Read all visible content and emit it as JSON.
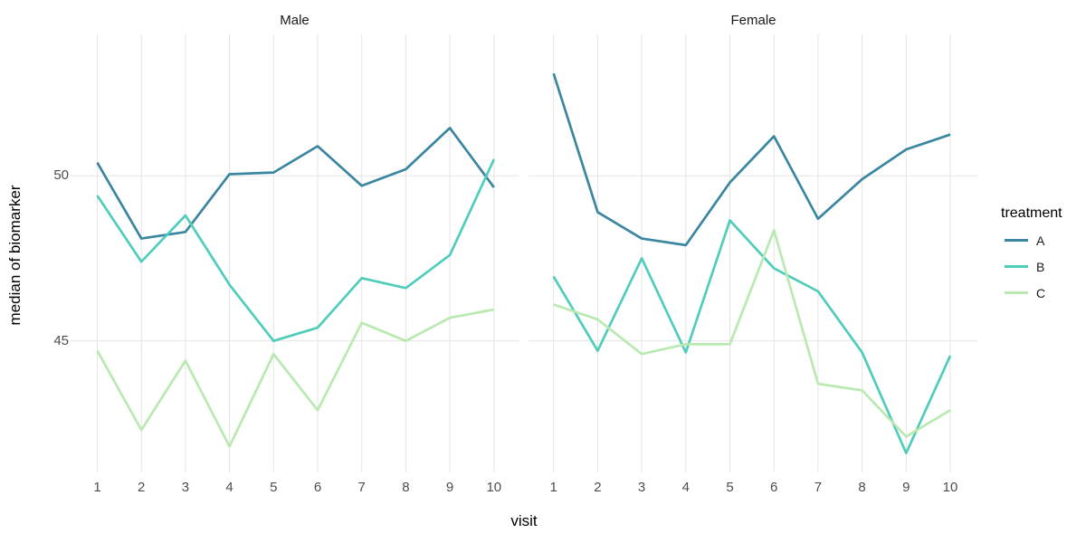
{
  "legend": {
    "title": "treatment",
    "items": [
      {
        "label": "A",
        "color": "#3a86a0"
      },
      {
        "label": "B",
        "color": "#4fccba"
      },
      {
        "label": "C",
        "color": "#b9e9b1"
      }
    ]
  },
  "chart_data": {
    "type": "line",
    "title": "",
    "xlabel": "visit",
    "ylabel": "median of biomarker",
    "x": [
      1,
      2,
      3,
      4,
      5,
      6,
      7,
      8,
      9,
      10
    ],
    "y_ticks": [
      45,
      50
    ],
    "ylim": [
      41.0,
      54.3
    ],
    "grid": "major-only",
    "grid_color": "#e4e4e4",
    "legend_position": "right",
    "facet_variable_values": [
      "Male",
      "Female"
    ],
    "facets": [
      {
        "title": "Male",
        "series": [
          {
            "name": "A",
            "color": "#3a86a0",
            "values": [
              50.4,
              48.1,
              48.3,
              50.05,
              50.1,
              50.9,
              49.7,
              50.2,
              51.45,
              49.65
            ]
          },
          {
            "name": "B",
            "color": "#4fccba",
            "values": [
              49.4,
              47.4,
              48.8,
              46.7,
              45.0,
              45.4,
              46.9,
              46.6,
              47.6,
              50.5
            ]
          },
          {
            "name": "C",
            "color": "#b9e9b1",
            "values": [
              44.7,
              42.3,
              44.4,
              41.8,
              44.6,
              42.9,
              45.55,
              45.0,
              45.7,
              45.95
            ]
          }
        ]
      },
      {
        "title": "Female",
        "series": [
          {
            "name": "A",
            "color": "#3a86a0",
            "values": [
              53.1,
              48.9,
              48.1,
              47.9,
              49.8,
              51.2,
              48.7,
              49.9,
              50.8,
              51.25
            ]
          },
          {
            "name": "B",
            "color": "#4fccba",
            "values": [
              46.95,
              44.7,
              47.5,
              44.65,
              48.65,
              47.2,
              46.5,
              44.65,
              41.6,
              44.55
            ]
          },
          {
            "name": "C",
            "color": "#b9e9b1",
            "values": [
              46.1,
              45.65,
              44.6,
              44.9,
              44.9,
              48.35,
              43.7,
              43.5,
              42.1,
              42.9
            ]
          }
        ]
      }
    ]
  }
}
